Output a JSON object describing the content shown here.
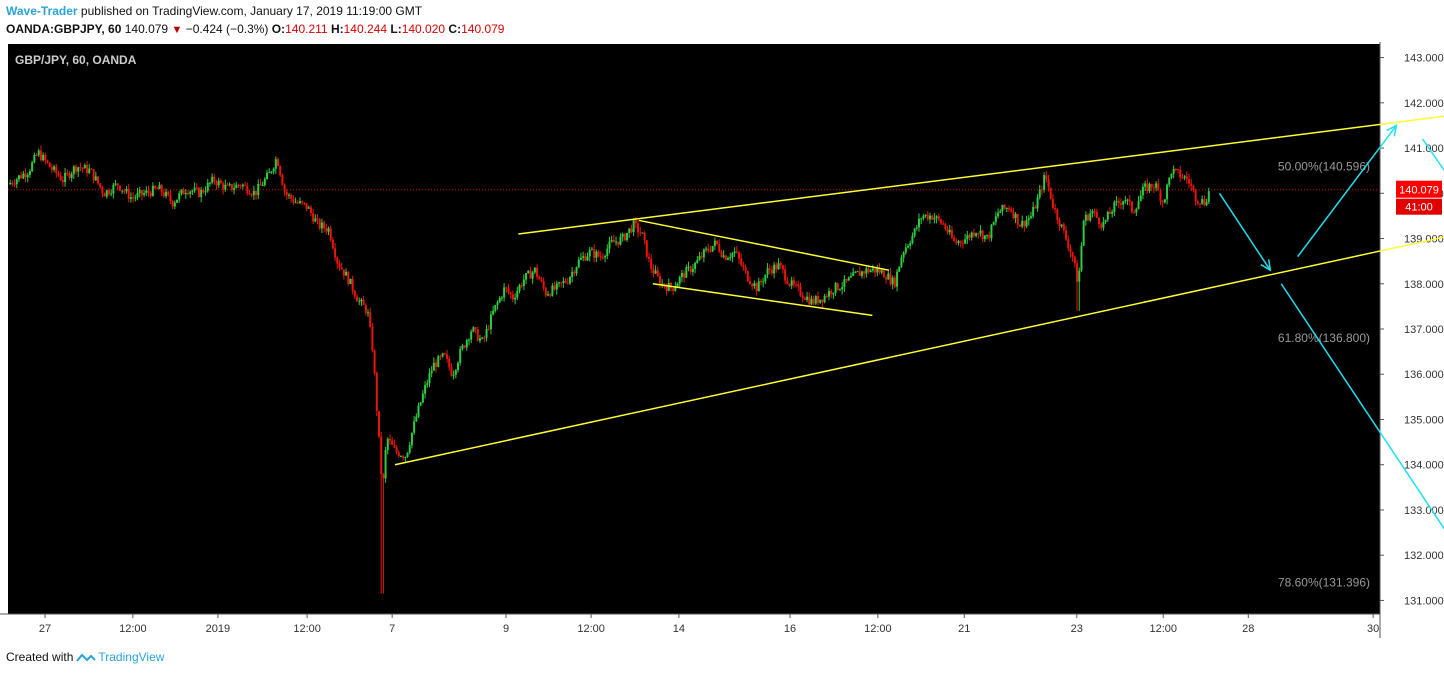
{
  "header": {
    "author": "Wave-Trader",
    "published": " published on TradingView.com, January 17, 2019 11:19:00 GMT",
    "symbol": "OANDA:GBPJPY, 60",
    "last": "140.079",
    "change": "−0.424 (−0.3%)",
    "open_label": "O:",
    "open": "140.211",
    "high_label": "H:",
    "high": "140.244",
    "low_label": "L:",
    "low": "140.020",
    "close_label": "C:",
    "close": "140.079"
  },
  "footer": {
    "created": "Created with",
    "brand": "TradingView"
  },
  "colors": {
    "up": "#2ecc40",
    "down": "#e8160c",
    "pattern": "#ffff33",
    "arrow": "#1ee0ee",
    "price_tag": "#ff0000"
  },
  "chart_data": {
    "type": "candlestick",
    "title": "GBP/JPY, 60, OANDA",
    "ylim": [
      130.7,
      143.3
    ],
    "xlim": [
      0,
      1000
    ],
    "y_ticks": [
      "143.000",
      "142.000",
      "141.000",
      "140.000",
      "139.000",
      "138.000",
      "137.000",
      "136.000",
      "135.000",
      "134.000",
      "133.000",
      "132.000",
      "131.000"
    ],
    "x_ticks": [
      {
        "label": "27",
        "x": 27
      },
      {
        "label": "12:00",
        "x": 91
      },
      {
        "label": "2019",
        "x": 153
      },
      {
        "label": "12:00",
        "x": 218
      },
      {
        "label": "7",
        "x": 280
      },
      {
        "label": "9",
        "x": 363
      },
      {
        "label": "12:00",
        "x": 425
      },
      {
        "label": "14",
        "x": 489
      },
      {
        "label": "16",
        "x": 570
      },
      {
        "label": "12:00",
        "x": 634
      },
      {
        "label": "21",
        "x": 697
      },
      {
        "label": "23",
        "x": 779
      },
      {
        "label": "12:00",
        "x": 842
      },
      {
        "label": "28",
        "x": 904
      },
      {
        "label": "30",
        "x": 995
      }
    ],
    "current_price": {
      "value": "140.079",
      "countdown": "41:00"
    },
    "fib_levels": [
      {
        "label": "50.00%(140.596)",
        "value": 140.596
      },
      {
        "label": "61.80%(136.800)",
        "value": 136.8
      },
      {
        "label": "78.60%(131.396)",
        "value": 131.396
      }
    ],
    "price_path": [
      [
        0,
        140.2
      ],
      [
        15,
        140.5
      ],
      [
        22,
        140.9
      ],
      [
        30,
        140.6
      ],
      [
        40,
        140.3
      ],
      [
        50,
        140.6
      ],
      [
        60,
        140.5
      ],
      [
        70,
        140.0
      ],
      [
        80,
        140.2
      ],
      [
        90,
        139.9
      ],
      [
        100,
        140.0
      ],
      [
        110,
        140.1
      ],
      [
        120,
        139.8
      ],
      [
        130,
        140.1
      ],
      [
        140,
        140.0
      ],
      [
        150,
        140.3
      ],
      [
        160,
        140.1
      ],
      [
        170,
        140.2
      ],
      [
        180,
        140.0
      ],
      [
        190,
        140.4
      ],
      [
        196,
        140.8
      ],
      [
        199,
        140.4
      ],
      [
        202,
        140.0
      ],
      [
        210,
        139.8
      ],
      [
        218,
        139.7
      ],
      [
        226,
        139.3
      ],
      [
        234,
        139.2
      ],
      [
        240,
        138.5
      ],
      [
        248,
        138.1
      ],
      [
        256,
        137.6
      ],
      [
        262,
        137.4
      ],
      [
        266,
        136.5
      ],
      [
        270,
        134.7
      ],
      [
        273,
        133.4
      ],
      [
        276,
        134.6
      ],
      [
        282,
        134.3
      ],
      [
        290,
        134.2
      ],
      [
        297,
        135.0
      ],
      [
        304,
        135.7
      ],
      [
        310,
        136.2
      ],
      [
        318,
        136.4
      ],
      [
        324,
        136.0
      ],
      [
        330,
        136.5
      ],
      [
        338,
        137.0
      ],
      [
        346,
        136.7
      ],
      [
        354,
        137.4
      ],
      [
        362,
        137.9
      ],
      [
        368,
        137.7
      ],
      [
        376,
        138.1
      ],
      [
        384,
        138.3
      ],
      [
        392,
        137.8
      ],
      [
        400,
        137.9
      ],
      [
        408,
        138.1
      ],
      [
        416,
        138.5
      ],
      [
        424,
        138.7
      ],
      [
        432,
        138.6
      ],
      [
        440,
        138.9
      ],
      [
        448,
        139.0
      ],
      [
        456,
        139.3
      ],
      [
        462,
        139.1
      ],
      [
        468,
        138.4
      ],
      [
        476,
        138.0
      ],
      [
        484,
        137.9
      ],
      [
        492,
        138.2
      ],
      [
        500,
        138.4
      ],
      [
        508,
        138.7
      ],
      [
        516,
        138.9
      ],
      [
        522,
        138.6
      ],
      [
        530,
        138.7
      ],
      [
        538,
        138.2
      ],
      [
        546,
        137.9
      ],
      [
        554,
        138.3
      ],
      [
        562,
        138.4
      ],
      [
        570,
        138.0
      ],
      [
        578,
        137.8
      ],
      [
        586,
        137.6
      ],
      [
        594,
        137.7
      ],
      [
        602,
        137.9
      ],
      [
        610,
        138.0
      ],
      [
        618,
        138.2
      ],
      [
        626,
        138.3
      ],
      [
        634,
        138.3
      ],
      [
        640,
        138.2
      ],
      [
        646,
        138.0
      ],
      [
        652,
        138.7
      ],
      [
        660,
        139.1
      ],
      [
        666,
        139.5
      ],
      [
        674,
        139.5
      ],
      [
        682,
        139.3
      ],
      [
        690,
        138.9
      ],
      [
        698,
        139.0
      ],
      [
        706,
        139.2
      ],
      [
        714,
        139.0
      ],
      [
        722,
        139.6
      ],
      [
        730,
        139.7
      ],
      [
        738,
        139.3
      ],
      [
        746,
        139.5
      ],
      [
        752,
        140.0
      ],
      [
        756,
        140.4
      ],
      [
        762,
        139.7
      ],
      [
        770,
        139.1
      ],
      [
        776,
        138.6
      ],
      [
        780,
        138.0
      ],
      [
        784,
        139.4
      ],
      [
        790,
        139.6
      ],
      [
        798,
        139.3
      ],
      [
        806,
        139.7
      ],
      [
        814,
        139.9
      ],
      [
        820,
        139.6
      ],
      [
        828,
        140.1
      ],
      [
        836,
        140.2
      ],
      [
        842,
        139.8
      ],
      [
        848,
        140.5
      ],
      [
        854,
        140.4
      ],
      [
        860,
        140.3
      ],
      [
        866,
        139.9
      ],
      [
        872,
        139.8
      ],
      [
        876,
        140.08
      ]
    ],
    "pattern_lines": [
      [
        [
          282,
          134.0
        ],
        [
          1118,
          139.5
        ]
      ],
      [
        [
          372,
          139.1
        ],
        [
          1124,
          142.0
        ]
      ],
      [
        [
          460,
          139.4
        ],
        [
          642,
          138.3
        ]
      ],
      [
        [
          470,
          138.0
        ],
        [
          630,
          137.3
        ]
      ]
    ],
    "arrows": [
      [
        [
          883,
          140.0
        ],
        [
          920,
          138.3
        ]
      ],
      [
        [
          940,
          138.6
        ],
        [
          1012,
          141.5
        ]
      ],
      [
        [
          1031,
          141.2
        ],
        [
          1072,
          139.4
        ]
      ],
      [
        [
          928,
          138.0
        ],
        [
          1075,
          131.3
        ]
      ],
      [
        [
          1080,
          139.0
        ],
        [
          1244,
          131.5
        ]
      ]
    ]
  }
}
